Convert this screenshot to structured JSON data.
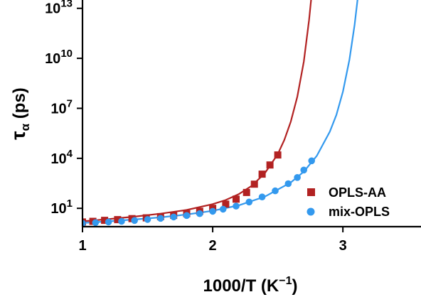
{
  "chart_data": {
    "type": "scatter",
    "x_label_main": "1000/T (K",
    "x_label_sup": "−1",
    "x_label_tail": ")",
    "y_label_symbol": "τ",
    "y_label_sub": "α",
    "y_label_tail": " (ps)",
    "xlim": [
      1.0,
      3.6
    ],
    "ylim_log10": [
      -0.1,
      13.5
    ],
    "y_scale": "log",
    "x_ticks": [
      1,
      2,
      3
    ],
    "x_tick_labels": [
      "1",
      "2",
      "3"
    ],
    "y_ticks_log10": [
      1,
      4,
      7,
      10,
      13
    ],
    "y_tick_base": "10",
    "y_tick_exponents": [
      "1",
      "4",
      "7",
      "10",
      "13"
    ],
    "legend_position": "bottom-right",
    "grid": false,
    "series": [
      {
        "name": "OPLS-AA",
        "color": "#b22222",
        "marker": "square",
        "points": [
          [
            1.0,
            0.18
          ],
          [
            1.08,
            0.22
          ],
          [
            1.17,
            0.28
          ],
          [
            1.27,
            0.32
          ],
          [
            1.38,
            0.38
          ],
          [
            1.49,
            0.43
          ],
          [
            1.6,
            0.5
          ],
          [
            1.7,
            0.58
          ],
          [
            1.8,
            0.68
          ],
          [
            1.9,
            0.82
          ],
          [
            2.0,
            1.0
          ],
          [
            2.1,
            1.25
          ],
          [
            2.18,
            1.55
          ],
          [
            2.26,
            1.95
          ],
          [
            2.32,
            2.45
          ],
          [
            2.38,
            3.05
          ],
          [
            2.44,
            3.6
          ],
          [
            2.5,
            4.2
          ]
        ],
        "fit": [
          [
            1.0,
            0.22
          ],
          [
            1.2,
            0.35
          ],
          [
            1.4,
            0.5
          ],
          [
            1.6,
            0.68
          ],
          [
            1.8,
            0.9
          ],
          [
            2.0,
            1.25
          ],
          [
            2.1,
            1.5
          ],
          [
            2.2,
            1.85
          ],
          [
            2.3,
            2.35
          ],
          [
            2.4,
            3.1
          ],
          [
            2.5,
            4.25
          ],
          [
            2.55,
            5.1
          ],
          [
            2.6,
            6.2
          ],
          [
            2.65,
            7.7
          ],
          [
            2.7,
            9.8
          ],
          [
            2.74,
            12.3
          ],
          [
            2.765,
            14.2
          ]
        ]
      },
      {
        "name": "mix-OPLS",
        "color": "#3399ee",
        "marker": "circle",
        "points": [
          [
            1.0,
            0.1
          ],
          [
            1.1,
            0.14
          ],
          [
            1.2,
            0.18
          ],
          [
            1.3,
            0.22
          ],
          [
            1.4,
            0.27
          ],
          [
            1.5,
            0.33
          ],
          [
            1.6,
            0.4
          ],
          [
            1.7,
            0.48
          ],
          [
            1.8,
            0.57
          ],
          [
            1.9,
            0.68
          ],
          [
            2.0,
            0.82
          ],
          [
            2.08,
            0.95
          ],
          [
            2.18,
            1.13
          ],
          [
            2.28,
            1.38
          ],
          [
            2.38,
            1.68
          ],
          [
            2.48,
            2.05
          ],
          [
            2.58,
            2.48
          ],
          [
            2.65,
            2.85
          ],
          [
            2.7,
            3.3
          ],
          [
            2.76,
            3.85
          ]
        ],
        "fit": [
          [
            1.0,
            0.12
          ],
          [
            1.2,
            0.22
          ],
          [
            1.4,
            0.33
          ],
          [
            1.6,
            0.46
          ],
          [
            1.8,
            0.63
          ],
          [
            2.0,
            0.85
          ],
          [
            2.2,
            1.18
          ],
          [
            2.4,
            1.7
          ],
          [
            2.6,
            2.55
          ],
          [
            2.7,
            3.2
          ],
          [
            2.8,
            4.15
          ],
          [
            2.9,
            5.6
          ],
          [
            2.95,
            6.6
          ],
          [
            3.0,
            8.0
          ],
          [
            3.05,
            9.9
          ],
          [
            3.09,
            12.0
          ],
          [
            3.12,
            14.0
          ]
        ]
      }
    ]
  }
}
